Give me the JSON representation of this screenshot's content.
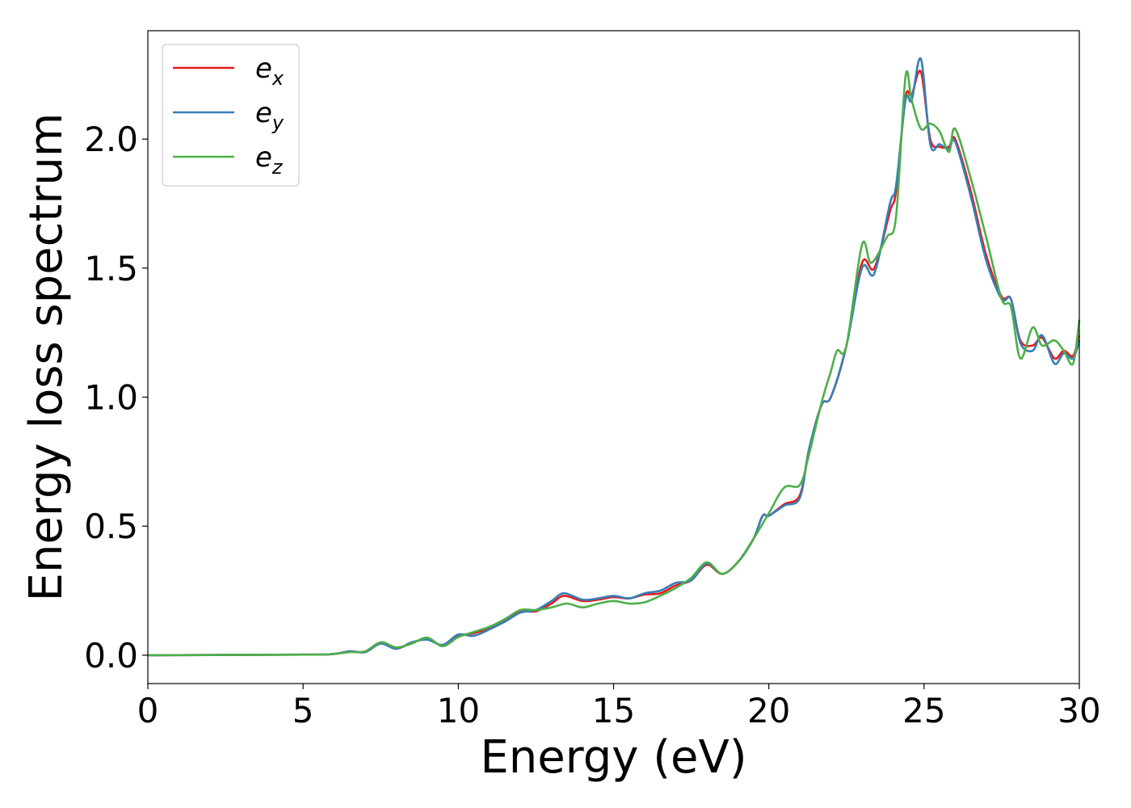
{
  "chart_data": {
    "type": "line",
    "xlabel": "Energy (eV)",
    "ylabel": "Energy loss spectrum",
    "xlim": [
      0,
      30
    ],
    "ylim": [
      -0.11,
      2.42
    ],
    "xticks": [
      0,
      5,
      10,
      15,
      20,
      25,
      30
    ],
    "xtick_labels": [
      "0",
      "5",
      "10",
      "15",
      "20",
      "25",
      "30"
    ],
    "yticks": [
      0.0,
      0.5,
      1.0,
      1.5,
      2.0
    ],
    "ytick_labels": [
      "0.0",
      "0.5",
      "1.0",
      "1.5",
      "2.0"
    ],
    "grid": false,
    "legend_position": "upper-left",
    "series": [
      {
        "name": "e",
        "subscript": "x",
        "color": "#e41a1c",
        "points": [
          [
            0,
            0
          ],
          [
            5,
            0.002
          ],
          [
            6,
            0.005
          ],
          [
            6.5,
            0.015
          ],
          [
            7,
            0.012
          ],
          [
            7.5,
            0.045
          ],
          [
            8,
            0.025
          ],
          [
            8.5,
            0.048
          ],
          [
            9,
            0.062
          ],
          [
            9.5,
            0.038
          ],
          [
            10,
            0.075
          ],
          [
            10.5,
            0.085
          ],
          [
            11,
            0.105
          ],
          [
            11.5,
            0.135
          ],
          [
            12,
            0.17
          ],
          [
            12.5,
            0.17
          ],
          [
            13,
            0.2
          ],
          [
            13.4,
            0.23
          ],
          [
            14,
            0.21
          ],
          [
            14.5,
            0.215
          ],
          [
            15,
            0.225
          ],
          [
            15.5,
            0.22
          ],
          [
            16,
            0.235
          ],
          [
            16.5,
            0.24
          ],
          [
            17,
            0.27
          ],
          [
            17.5,
            0.29
          ],
          [
            18,
            0.35
          ],
          [
            18.5,
            0.315
          ],
          [
            19,
            0.36
          ],
          [
            19.5,
            0.45
          ],
          [
            19.8,
            0.54
          ],
          [
            20,
            0.54
          ],
          [
            20.5,
            0.585
          ],
          [
            21,
            0.62
          ],
          [
            21.3,
            0.8
          ],
          [
            21.7,
            0.97
          ],
          [
            22,
            1.0
          ],
          [
            22.5,
            1.2
          ],
          [
            23,
            1.52
          ],
          [
            23.4,
            1.5
          ],
          [
            23.9,
            1.72
          ],
          [
            24.1,
            1.8
          ],
          [
            24.4,
            2.16
          ],
          [
            24.6,
            2.17
          ],
          [
            24.9,
            2.26
          ],
          [
            25.2,
            2.0
          ],
          [
            25.5,
            1.97
          ],
          [
            25.8,
            1.97
          ],
          [
            26,
            2.0
          ],
          [
            26.5,
            1.8
          ],
          [
            27,
            1.55
          ],
          [
            27.5,
            1.39
          ],
          [
            27.8,
            1.38
          ],
          [
            28.1,
            1.22
          ],
          [
            28.5,
            1.2
          ],
          [
            28.8,
            1.23
          ],
          [
            29.2,
            1.15
          ],
          [
            29.5,
            1.18
          ],
          [
            29.8,
            1.16
          ],
          [
            30,
            1.24
          ]
        ]
      },
      {
        "name": "e",
        "subscript": "y",
        "color": "#377eb8",
        "points": [
          [
            0,
            0
          ],
          [
            5,
            0.002
          ],
          [
            6,
            0.005
          ],
          [
            6.5,
            0.015
          ],
          [
            7,
            0.012
          ],
          [
            7.5,
            0.045
          ],
          [
            8,
            0.025
          ],
          [
            8.5,
            0.05
          ],
          [
            9,
            0.06
          ],
          [
            9.5,
            0.04
          ],
          [
            10,
            0.08
          ],
          [
            10.5,
            0.075
          ],
          [
            11,
            0.1
          ],
          [
            11.5,
            0.13
          ],
          [
            12,
            0.165
          ],
          [
            12.5,
            0.175
          ],
          [
            13,
            0.21
          ],
          [
            13.4,
            0.24
          ],
          [
            14,
            0.215
          ],
          [
            14.5,
            0.22
          ],
          [
            15,
            0.23
          ],
          [
            15.5,
            0.22
          ],
          [
            16,
            0.24
          ],
          [
            16.5,
            0.25
          ],
          [
            17,
            0.28
          ],
          [
            17.5,
            0.29
          ],
          [
            18,
            0.355
          ],
          [
            18.5,
            0.315
          ],
          [
            19,
            0.36
          ],
          [
            19.5,
            0.45
          ],
          [
            19.8,
            0.54
          ],
          [
            20,
            0.54
          ],
          [
            20.5,
            0.58
          ],
          [
            21,
            0.61
          ],
          [
            21.3,
            0.8
          ],
          [
            21.7,
            0.97
          ],
          [
            22,
            1.0
          ],
          [
            22.5,
            1.2
          ],
          [
            23,
            1.5
          ],
          [
            23.4,
            1.48
          ],
          [
            23.9,
            1.75
          ],
          [
            24.1,
            1.82
          ],
          [
            24.4,
            2.15
          ],
          [
            24.6,
            2.15
          ],
          [
            24.9,
            2.31
          ],
          [
            25.2,
            1.98
          ],
          [
            25.5,
            1.98
          ],
          [
            25.8,
            1.96
          ],
          [
            26,
            1.99
          ],
          [
            26.5,
            1.78
          ],
          [
            27,
            1.53
          ],
          [
            27.5,
            1.38
          ],
          [
            27.8,
            1.38
          ],
          [
            28.1,
            1.21
          ],
          [
            28.5,
            1.18
          ],
          [
            28.8,
            1.24
          ],
          [
            29.2,
            1.13
          ],
          [
            29.5,
            1.17
          ],
          [
            29.8,
            1.15
          ],
          [
            30,
            1.22
          ]
        ]
      },
      {
        "name": "e",
        "subscript": "z",
        "color": "#4daf4a",
        "points": [
          [
            0,
            0
          ],
          [
            5,
            0.002
          ],
          [
            6,
            0.005
          ],
          [
            6.5,
            0.012
          ],
          [
            7,
            0.015
          ],
          [
            7.5,
            0.05
          ],
          [
            8,
            0.03
          ],
          [
            8.5,
            0.045
          ],
          [
            9,
            0.068
          ],
          [
            9.5,
            0.035
          ],
          [
            10,
            0.07
          ],
          [
            10.5,
            0.09
          ],
          [
            11,
            0.11
          ],
          [
            11.5,
            0.14
          ],
          [
            12,
            0.175
          ],
          [
            12.5,
            0.175
          ],
          [
            13,
            0.185
          ],
          [
            13.5,
            0.2
          ],
          [
            14,
            0.185
          ],
          [
            14.5,
            0.2
          ],
          [
            15,
            0.21
          ],
          [
            15.5,
            0.2
          ],
          [
            16,
            0.205
          ],
          [
            16.5,
            0.23
          ],
          [
            17,
            0.26
          ],
          [
            17.5,
            0.3
          ],
          [
            18,
            0.36
          ],
          [
            18.5,
            0.315
          ],
          [
            19,
            0.36
          ],
          [
            19.5,
            0.45
          ],
          [
            20,
            0.55
          ],
          [
            20.5,
            0.65
          ],
          [
            21,
            0.66
          ],
          [
            21.3,
            0.78
          ],
          [
            21.7,
            0.98
          ],
          [
            22,
            1.1
          ],
          [
            22.2,
            1.18
          ],
          [
            22.5,
            1.2
          ],
          [
            23,
            1.59
          ],
          [
            23.3,
            1.52
          ],
          [
            23.8,
            1.62
          ],
          [
            24.1,
            1.7
          ],
          [
            24.4,
            2.24
          ],
          [
            24.6,
            2.15
          ],
          [
            24.9,
            2.04
          ],
          [
            25.2,
            2.06
          ],
          [
            25.5,
            2.03
          ],
          [
            25.8,
            1.95
          ],
          [
            26,
            2.04
          ],
          [
            26.5,
            1.85
          ],
          [
            27,
            1.62
          ],
          [
            27.5,
            1.38
          ],
          [
            27.8,
            1.35
          ],
          [
            28.1,
            1.15
          ],
          [
            28.5,
            1.27
          ],
          [
            28.8,
            1.2
          ],
          [
            29.2,
            1.22
          ],
          [
            29.5,
            1.18
          ],
          [
            29.8,
            1.13
          ],
          [
            30,
            1.3
          ]
        ]
      }
    ]
  }
}
